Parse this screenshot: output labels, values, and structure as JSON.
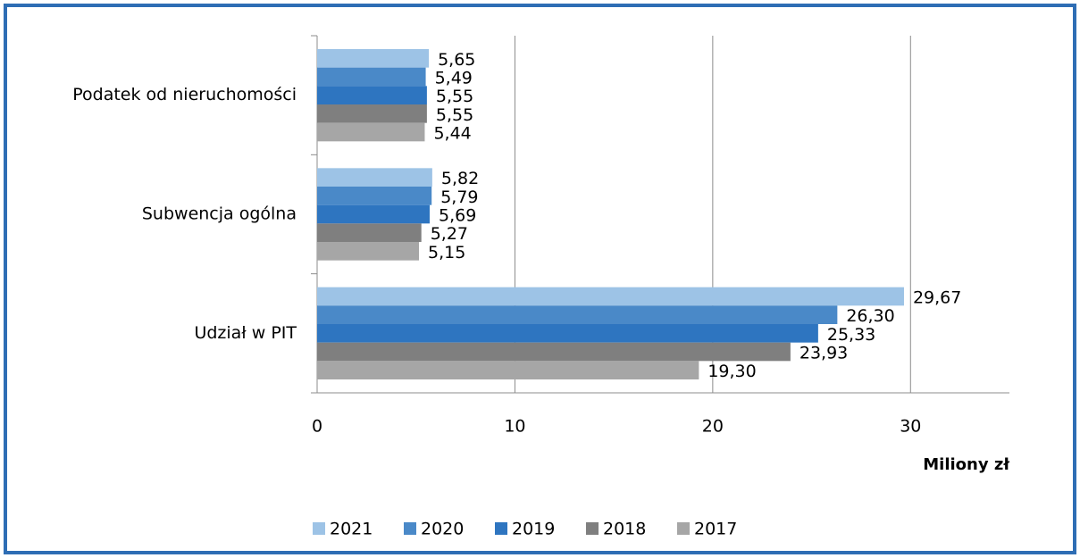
{
  "chart_data": {
    "type": "bar",
    "orientation": "horizontal",
    "categories": [
      "Podatek od nieruchomości",
      "Subwencja ogólna",
      "Udział w PIT"
    ],
    "series": [
      {
        "name": "2021",
        "color": "#9dc3e6",
        "values": [
          5.65,
          5.82,
          29.67
        ],
        "value_labels": [
          "5,65",
          "5,82",
          "29,67"
        ]
      },
      {
        "name": "2020",
        "color": "#4a89c8",
        "values": [
          5.49,
          5.79,
          26.3
        ],
        "value_labels": [
          "5,49",
          "5,79",
          "26,30"
        ]
      },
      {
        "name": "2019",
        "color": "#2e75c0",
        "values": [
          5.55,
          5.69,
          25.33
        ],
        "value_labels": [
          "5,55",
          "5,69",
          "25,33"
        ]
      },
      {
        "name": "2018",
        "color": "#7f7f7f",
        "values": [
          5.55,
          5.27,
          23.93
        ],
        "value_labels": [
          "5,55",
          "5,27",
          "23,93"
        ]
      },
      {
        "name": "2017",
        "color": "#a6a6a6",
        "values": [
          5.44,
          5.15,
          19.3
        ],
        "value_labels": [
          "5,44",
          "5,15",
          "19,30"
        ]
      }
    ],
    "x_axis_label": "Miliony zł",
    "xlim": [
      0,
      35
    ],
    "xticks": [
      0,
      10,
      20,
      30
    ],
    "grid": true,
    "legend": "bottom"
  }
}
